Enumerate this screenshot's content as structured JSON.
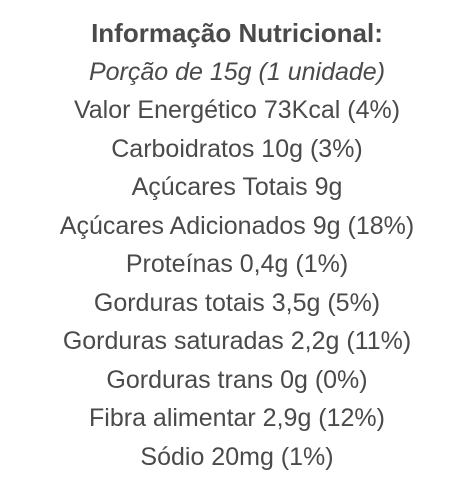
{
  "title": "Informação Nutricional:",
  "serving": "Porção de 15g (1 unidade)",
  "rows": [
    "Valor Energético 73Kcal (4%)",
    "Carboidratos 10g (3%)",
    "Açúcares Totais 9g",
    "Açúcares Adicionados 9g (18%)",
    "Proteínas 0,4g (1%)",
    "Gorduras totais 3,5g (5%)",
    "Gorduras saturadas 2,2g (11%)",
    "Gorduras trans 0g (0%)",
    "Fibra alimentar 2,9g (12%)",
    "Sódio 20mg (1%)"
  ],
  "colors": {
    "text": "#4a4a4a",
    "background": "#ffffff"
  }
}
